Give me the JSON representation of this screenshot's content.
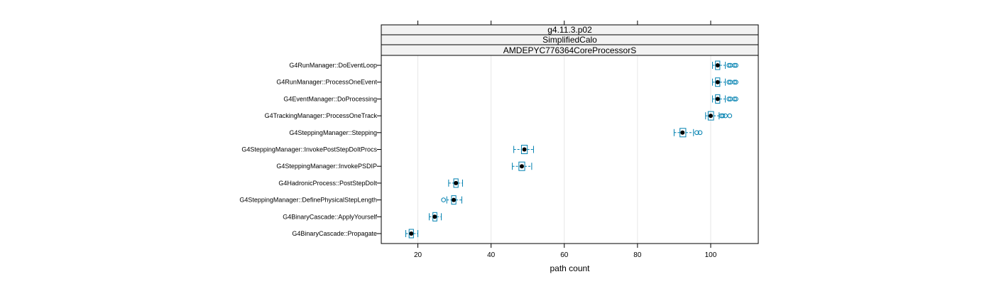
{
  "chart_data": {
    "type": "box",
    "orientation": "horizontal",
    "strips": [
      "g4.11.3.p02",
      "SimplifiedCalo",
      "AMDEPYC776364CoreProcessorS"
    ],
    "xlabel": "path count",
    "ylabel": "",
    "xlim": [
      10,
      113
    ],
    "xticks": [
      20,
      40,
      60,
      80,
      100
    ],
    "grid": true,
    "colors": {
      "box": "#0080b0",
      "median": "#000000",
      "grid": "#e6e6e6",
      "strip_bg": "#f2f2f2"
    },
    "categories": [
      "G4RunManager::DoEventLoop",
      "G4RunManager::ProcessOneEvent",
      "G4EventManager::DoProcessing",
      "G4TrackingManager::ProcessOneTrack",
      "G4SteppingManager::Stepping",
      "G4SteppingManager::InvokePostStepDoItProcs",
      "G4SteppingManager::InvokePSDIP",
      "G4HadronicProcess::PostStepDoIt",
      "G4SteppingManager::DefinePhysicalStepLength",
      "G4BinaryCascade::ApplyYourself",
      "G4BinaryCascade::Propagate"
    ],
    "boxes": [
      {
        "min": 100.5,
        "q1": 101.3,
        "median": 101.9,
        "q3": 102.5,
        "max": 104.0,
        "outliers": [
          105.0,
          105.4,
          106.5,
          106.9
        ]
      },
      {
        "min": 100.5,
        "q1": 101.3,
        "median": 101.9,
        "q3": 102.5,
        "max": 104.0,
        "outliers": [
          105.0,
          105.4,
          106.5,
          106.9
        ]
      },
      {
        "min": 100.5,
        "q1": 101.3,
        "median": 101.9,
        "q3": 102.5,
        "max": 104.0,
        "outliers": [
          105.0,
          105.4,
          106.5,
          106.9
        ]
      },
      {
        "min": 98.6,
        "q1": 99.3,
        "median": 100.0,
        "q3": 100.8,
        "max": 102.3,
        "outliers": [
          102.9,
          103.3,
          104.0,
          105.2
        ]
      },
      {
        "min": 90.0,
        "q1": 91.6,
        "median": 92.3,
        "q3": 93.2,
        "max": 95.3,
        "outliers": [
          96.2,
          97.1
        ]
      },
      {
        "min": 46.2,
        "q1": 48.3,
        "median": 49.1,
        "q3": 49.9,
        "max": 51.6,
        "outliers": []
      },
      {
        "min": 45.8,
        "q1": 47.6,
        "median": 48.4,
        "q3": 49.2,
        "max": 51.1,
        "outliers": []
      },
      {
        "min": 28.4,
        "q1": 29.8,
        "median": 30.4,
        "q3": 31.0,
        "max": 32.2,
        "outliers": []
      },
      {
        "min": 27.9,
        "q1": 29.2,
        "median": 29.8,
        "q3": 30.4,
        "max": 32.0,
        "outliers": [
          27.0
        ]
      },
      {
        "min": 23.1,
        "q1": 24.1,
        "median": 24.6,
        "q3": 25.2,
        "max": 26.4,
        "outliers": []
      },
      {
        "min": 16.7,
        "q1": 17.6,
        "median": 18.2,
        "q3": 18.8,
        "max": 20.0,
        "outliers": []
      }
    ]
  }
}
